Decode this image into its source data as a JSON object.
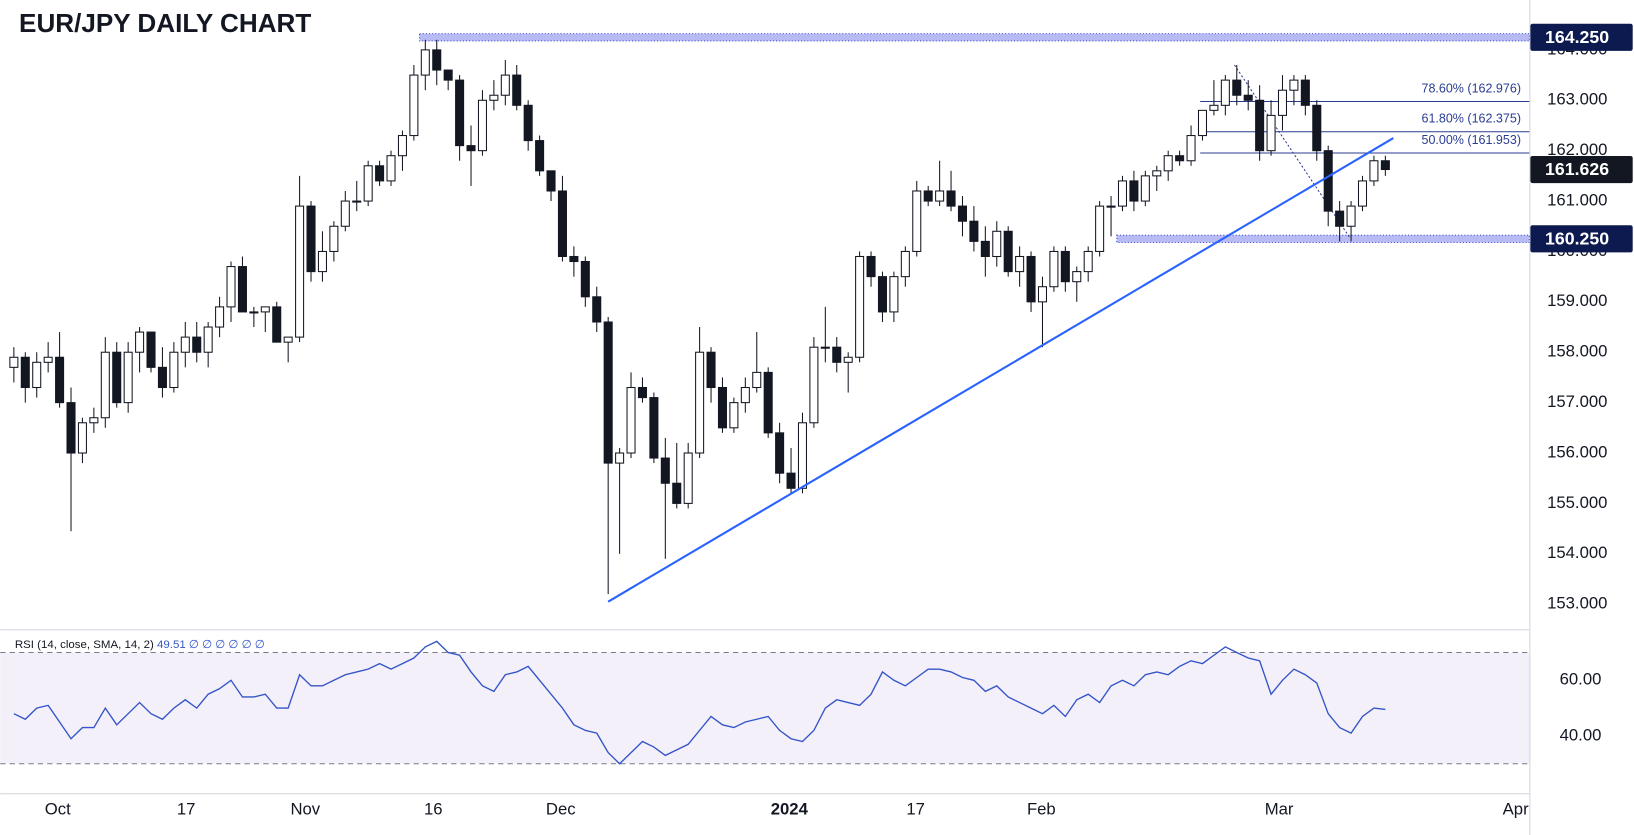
{
  "chart_data": [
    {
      "type": "candlestick",
      "title": "EUR/JPY DAILY CHART",
      "x": [
        0,
        1,
        2,
        3,
        4,
        5,
        6,
        7,
        8,
        9,
        10,
        11,
        12,
        13,
        14,
        15,
        16,
        17,
        18,
        19,
        20,
        21,
        22,
        23,
        24,
        25,
        26,
        27,
        28,
        29,
        30,
        31,
        32,
        33,
        34,
        35,
        36,
        37,
        38,
        39,
        40,
        41,
        42,
        43,
        44,
        45,
        46,
        47,
        48,
        49,
        50,
        51,
        52,
        53,
        54,
        55,
        56,
        57,
        58,
        59,
        60,
        61,
        62,
        63,
        64,
        65,
        66,
        67,
        68,
        69,
        70,
        71,
        72,
        73,
        74,
        75,
        76,
        77,
        78,
        79,
        80,
        81,
        82,
        83,
        84,
        85,
        86,
        87,
        88,
        89,
        90,
        91,
        92,
        93,
        94,
        95,
        96,
        97,
        98,
        99,
        100,
        101,
        102,
        103,
        104,
        105,
        106,
        107,
        108,
        109,
        110,
        111,
        112,
        113,
        114,
        115,
        116,
        117,
        118,
        119,
        120
      ],
      "open": [
        157.7,
        157.9,
        157.3,
        157.8,
        157.9,
        157.0,
        156.0,
        156.6,
        156.7,
        158.0,
        157.0,
        158.0,
        158.4,
        157.7,
        157.3,
        158.0,
        158.3,
        158.0,
        158.5,
        158.9,
        159.7,
        158.8,
        158.8,
        158.9,
        158.2,
        158.3,
        160.9,
        159.6,
        160.0,
        160.5,
        161.0,
        161.0,
        161.7,
        161.4,
        161.9,
        162.3,
        163.5,
        164.0,
        163.6,
        163.4,
        162.1,
        162.0,
        163.0,
        163.1,
        163.5,
        162.9,
        162.2,
        161.6,
        161.2,
        159.9,
        159.8,
        159.1,
        158.6,
        155.8,
        156.0,
        157.3,
        157.1,
        155.9,
        155.4,
        155.0,
        156.0,
        158.0,
        157.3,
        156.5,
        157.0,
        157.3,
        157.6,
        156.4,
        155.6,
        155.3,
        156.6,
        158.1,
        158.1,
        157.8,
        157.9,
        159.9,
        159.5,
        158.8,
        159.5,
        160.0,
        161.2,
        161.0,
        161.2,
        160.9,
        160.6,
        160.2,
        159.9,
        160.4,
        159.6,
        159.9,
        159.0,
        159.3,
        160.0,
        159.4,
        159.6,
        160.0,
        160.9,
        160.9,
        161.4,
        161.0,
        161.5,
        161.6,
        161.9,
        161.8,
        162.3,
        162.8,
        162.9,
        163.4,
        163.1,
        163.0,
        162.0,
        162.7,
        163.2,
        163.4,
        162.9,
        162.0,
        160.8,
        160.5,
        160.9,
        161.4,
        161.8
      ],
      "high": [
        158.1,
        158.0,
        158.0,
        158.2,
        158.4,
        157.3,
        156.7,
        156.9,
        158.3,
        158.2,
        158.2,
        158.5,
        158.4,
        158.1,
        158.2,
        158.6,
        158.6,
        158.6,
        159.1,
        159.8,
        159.9,
        158.9,
        158.9,
        159.0,
        158.3,
        161.5,
        161.0,
        160.4,
        160.6,
        161.2,
        161.4,
        161.8,
        161.8,
        162.0,
        162.4,
        163.7,
        164.2,
        164.2,
        163.6,
        163.5,
        162.5,
        163.2,
        163.4,
        163.8,
        163.7,
        163.0,
        162.3,
        161.6,
        161.5,
        160.1,
        159.9,
        159.3,
        158.7,
        156.1,
        157.6,
        157.5,
        157.2,
        156.3,
        156.2,
        156.2,
        158.5,
        158.1,
        157.5,
        157.1,
        157.5,
        158.4,
        157.7,
        156.6,
        156.1,
        156.8,
        158.3,
        158.9,
        158.3,
        158.0,
        160.0,
        160.0,
        159.6,
        159.6,
        160.1,
        161.4,
        161.3,
        161.8,
        161.6,
        161.1,
        160.9,
        160.5,
        160.6,
        160.5,
        160.1,
        160.0,
        159.5,
        160.1,
        160.1,
        159.7,
        160.1,
        161.0,
        161.1,
        161.5,
        161.6,
        161.6,
        161.7,
        162.0,
        162.0,
        162.5,
        162.8,
        163.4,
        163.5,
        163.7,
        163.4,
        163.3,
        163.0,
        163.5,
        163.5,
        163.5,
        163.0,
        162.1,
        161.0,
        161.0,
        161.5,
        161.9,
        161.9
      ],
      "low": [
        157.4,
        157.0,
        157.1,
        157.6,
        156.9,
        154.45,
        155.8,
        156.4,
        156.5,
        156.9,
        156.8,
        157.6,
        157.6,
        157.1,
        157.2,
        157.7,
        157.8,
        157.7,
        158.3,
        158.6,
        158.8,
        158.5,
        158.4,
        158.2,
        157.8,
        158.2,
        159.4,
        159.4,
        159.8,
        160.4,
        160.8,
        160.9,
        161.3,
        161.3,
        161.6,
        162.2,
        163.2,
        163.3,
        163.2,
        161.8,
        161.3,
        161.9,
        162.8,
        162.9,
        162.8,
        162.0,
        161.5,
        161.0,
        159.8,
        159.5,
        158.9,
        158.4,
        153.2,
        154.0,
        155.9,
        157.0,
        155.8,
        153.9,
        154.9,
        154.9,
        155.9,
        157.0,
        156.4,
        156.4,
        156.8,
        157.2,
        156.3,
        155.4,
        155.2,
        155.2,
        156.5,
        157.8,
        157.6,
        157.2,
        157.8,
        159.3,
        158.6,
        158.6,
        159.3,
        159.9,
        160.9,
        160.9,
        160.8,
        160.3,
        160.0,
        159.5,
        159.7,
        159.5,
        159.3,
        158.8,
        158.1,
        159.2,
        159.2,
        159.0,
        159.4,
        159.9,
        160.3,
        160.8,
        160.8,
        160.9,
        161.2,
        161.4,
        161.7,
        161.7,
        162.2,
        162.7,
        162.7,
        162.9,
        162.8,
        161.8,
        161.9,
        162.4,
        162.9,
        162.7,
        161.8,
        160.5,
        160.2,
        160.2,
        160.8,
        161.3,
        161.5
      ],
      "close": [
        157.9,
        157.3,
        157.8,
        157.9,
        157.0,
        156.0,
        156.6,
        156.7,
        158.0,
        157.0,
        158.0,
        158.4,
        157.7,
        157.3,
        158.0,
        158.3,
        158.0,
        158.5,
        158.9,
        159.7,
        158.8,
        158.8,
        158.9,
        158.2,
        158.3,
        160.9,
        159.6,
        160.0,
        160.5,
        161.0,
        161.0,
        161.7,
        161.4,
        161.9,
        162.3,
        163.5,
        164.0,
        163.6,
        163.4,
        162.1,
        162.0,
        163.0,
        163.1,
        163.5,
        162.9,
        162.2,
        161.6,
        161.2,
        159.9,
        159.8,
        159.1,
        158.6,
        155.8,
        156.0,
        157.3,
        157.1,
        155.9,
        155.4,
        155.0,
        156.0,
        158.0,
        157.3,
        156.5,
        157.0,
        157.3,
        157.6,
        156.4,
        155.6,
        155.3,
        156.6,
        158.1,
        158.1,
        157.8,
        157.9,
        159.9,
        159.5,
        158.8,
        159.5,
        160.0,
        161.2,
        161.0,
        161.2,
        160.9,
        160.6,
        160.2,
        159.9,
        160.4,
        159.6,
        159.9,
        159.0,
        159.3,
        160.0,
        159.4,
        159.6,
        160.0,
        160.9,
        160.9,
        161.4,
        161.0,
        161.5,
        161.6,
        161.9,
        161.8,
        162.3,
        162.8,
        162.9,
        163.4,
        163.1,
        163.0,
        162.0,
        162.7,
        163.2,
        163.4,
        162.9,
        162.0,
        160.8,
        160.5,
        160.9,
        161.4,
        161.8,
        161.626
      ],
      "up_color": "#ffffff",
      "down_color": "#131722",
      "xlim": [
        -1.19,
        132.6
      ],
      "ylim": [
        152.5,
        164.99
      ],
      "yticks": [
        {
          "value": 153,
          "label": "153.000"
        },
        {
          "value": 154,
          "label": "154.000"
        },
        {
          "value": 155,
          "label": "155.000"
        },
        {
          "value": 156,
          "label": "156.000"
        },
        {
          "value": 157,
          "label": "157.000"
        },
        {
          "value": 158,
          "label": "158.000"
        },
        {
          "value": 159,
          "label": "159.000"
        },
        {
          "value": 160,
          "label": "160.000"
        },
        {
          "value": 161,
          "label": "161.000"
        },
        {
          "value": 162,
          "label": "162.000"
        },
        {
          "value": 163,
          "label": "163.000"
        },
        {
          "value": 164,
          "label": "164.000"
        }
      ],
      "grid": false,
      "levels": [
        {
          "value": 164.25,
          "label": "164.250",
          "x_start": 35.5
        },
        {
          "value": 160.25,
          "label": "160.250",
          "x_start": 96.5
        }
      ],
      "fib_levels": [
        {
          "value": 162.976,
          "label": "78.60% (162.976)"
        },
        {
          "value": 162.375,
          "label": "61.80% (162.375)"
        },
        {
          "value": 161.953,
          "label": "50.00% (161.953)"
        }
      ],
      "fib_x_start": 103.8,
      "fib_swing": {
        "x": [
          106.8,
          116.9
        ],
        "y": [
          163.7,
          160.27
        ]
      },
      "trendline": {
        "x": [
          52,
          120.7
        ],
        "y": [
          153.05,
          162.25
        ],
        "color": "#2962ff"
      }
    },
    {
      "type": "line",
      "legend_text": "RSI (14, close, SMA, 14, 2)",
      "legend_extra": "∅ ∅ ∅ ∅ ∅ ∅",
      "series": [
        {
          "color": "#3454c8",
          "values": [
            48,
            46,
            50,
            51,
            45,
            39,
            43,
            43,
            50,
            44,
            48,
            52,
            48,
            46,
            50,
            53,
            50,
            55,
            57,
            60,
            54,
            54,
            55,
            50,
            50,
            62,
            58,
            58,
            60,
            62,
            63,
            64,
            66,
            64,
            66,
            68,
            72,
            74,
            70,
            69,
            63,
            58,
            56,
            62,
            63,
            65,
            60,
            55,
            50,
            44,
            42,
            41,
            34,
            30,
            34,
            38,
            36,
            33,
            35,
            37,
            42,
            47,
            44,
            43,
            45,
            46,
            47,
            42,
            39,
            38,
            42,
            50,
            53,
            52,
            51,
            55,
            63,
            60,
            58,
            61,
            64,
            64,
            63,
            61,
            60,
            56,
            58,
            54,
            52,
            50,
            48,
            51,
            47,
            53,
            55,
            52,
            58,
            60,
            58,
            62,
            63,
            62,
            65,
            67,
            66,
            69,
            72,
            70,
            68,
            67,
            55,
            60,
            64,
            62,
            59,
            48,
            43,
            41,
            47,
            50,
            49.51
          ]
        }
      ],
      "ylim": [
        19.4,
        78.3
      ],
      "yticks": [
        {
          "value": 40,
          "label": "40.00"
        },
        {
          "value": 60,
          "label": "60.00"
        }
      ],
      "band": [
        30,
        70
      ],
      "xlim": [
        -1.19,
        132.6
      ],
      "xticks": [
        {
          "value": 3.84,
          "label": "Oct"
        },
        {
          "value": 15.07,
          "label": "17"
        },
        {
          "value": 25.5,
          "label": "Nov"
        },
        {
          "value": 36.7,
          "label": "16"
        },
        {
          "value": 47.85,
          "label": "Dec"
        },
        {
          "value": 67.85,
          "label": "2024"
        },
        {
          "value": 78.9,
          "label": "17"
        },
        {
          "value": 89.9,
          "label": "Feb"
        },
        {
          "value": 110.7,
          "label": "Mar"
        },
        {
          "value": 131.4,
          "label": "Apr"
        }
      ]
    }
  ]
}
